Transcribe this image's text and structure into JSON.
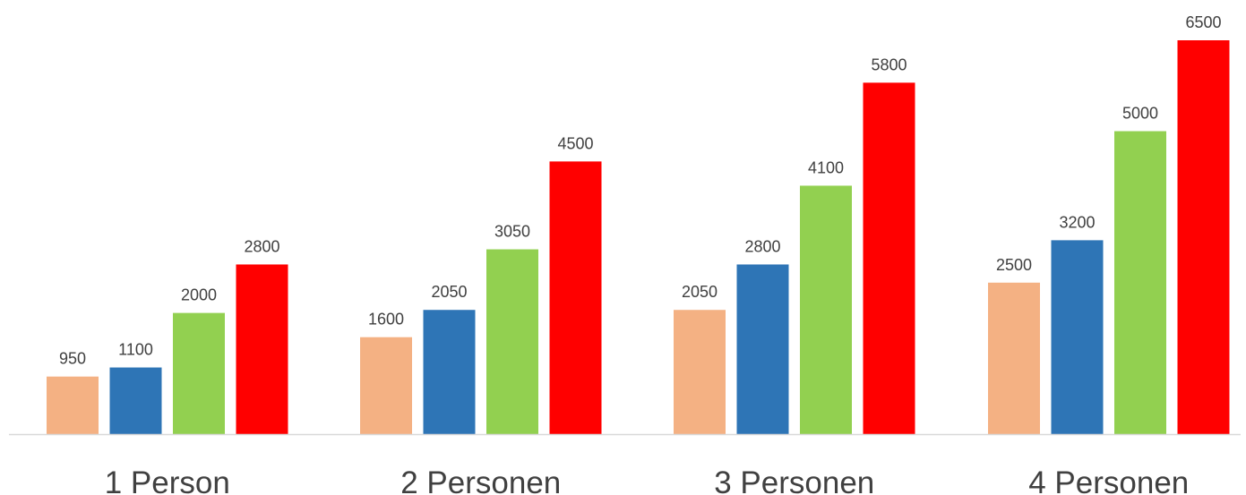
{
  "chart_data": {
    "type": "bar",
    "categories": [
      "1 Person",
      "2 Personen",
      "3 Personen",
      "4 Personen"
    ],
    "series": [
      {
        "values": [
          950,
          1600,
          2050,
          2500
        ],
        "color": "#F4B183"
      },
      {
        "values": [
          1100,
          2050,
          2800,
          3200
        ],
        "color": "#2E75B6"
      },
      {
        "values": [
          2000,
          3050,
          4100,
          5000
        ],
        "color": "#92D050"
      },
      {
        "values": [
          2800,
          4500,
          5800,
          6500
        ],
        "color": "#FF0000"
      }
    ],
    "data_labels": [
      [
        "950",
        "1600",
        "2050",
        "2500"
      ],
      [
        "1100",
        "2050",
        "2800",
        "3200"
      ],
      [
        "2000",
        "3050",
        "4100",
        "5000"
      ],
      [
        "2800",
        "4500",
        "5800",
        "6500"
      ]
    ],
    "ylim": [
      0,
      6500
    ],
    "grid": false,
    "legend": "none",
    "axis_color": "#D9D9D9",
    "label_color": "#404040"
  }
}
